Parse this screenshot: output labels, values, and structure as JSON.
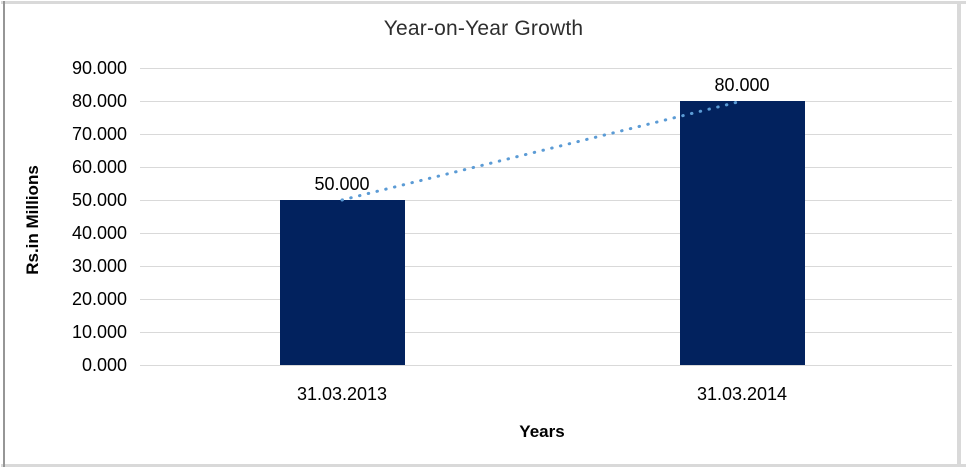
{
  "chart_data": {
    "type": "bar",
    "title": "Year-on-Year Growth",
    "xlabel": "Years",
    "ylabel": "Rs.in Millions",
    "categories": [
      "31.03.2013",
      "31.03.2014"
    ],
    "values": [
      50,
      80
    ],
    "data_labels": [
      "50.000",
      "80.000"
    ],
    "y_tick_labels": [
      "0.000",
      "10.000",
      "20.000",
      "30.000",
      "40.000",
      "50.000",
      "60.000",
      "70.000",
      "80.000",
      "90.000"
    ],
    "ylim": [
      0,
      90
    ],
    "y_step": 10,
    "grid": true,
    "legend": "none",
    "trendline": {
      "style": "dotted",
      "between_bar_tops": true
    },
    "colors": {
      "bar": "#02225e",
      "gridline": "#d9d9d9",
      "trendline": "#5b9bd5",
      "title_text": "#2e2e2e",
      "axis_text": "#000000",
      "frame_border": "#d9d9d9",
      "frame_left_line": "#969696"
    }
  }
}
